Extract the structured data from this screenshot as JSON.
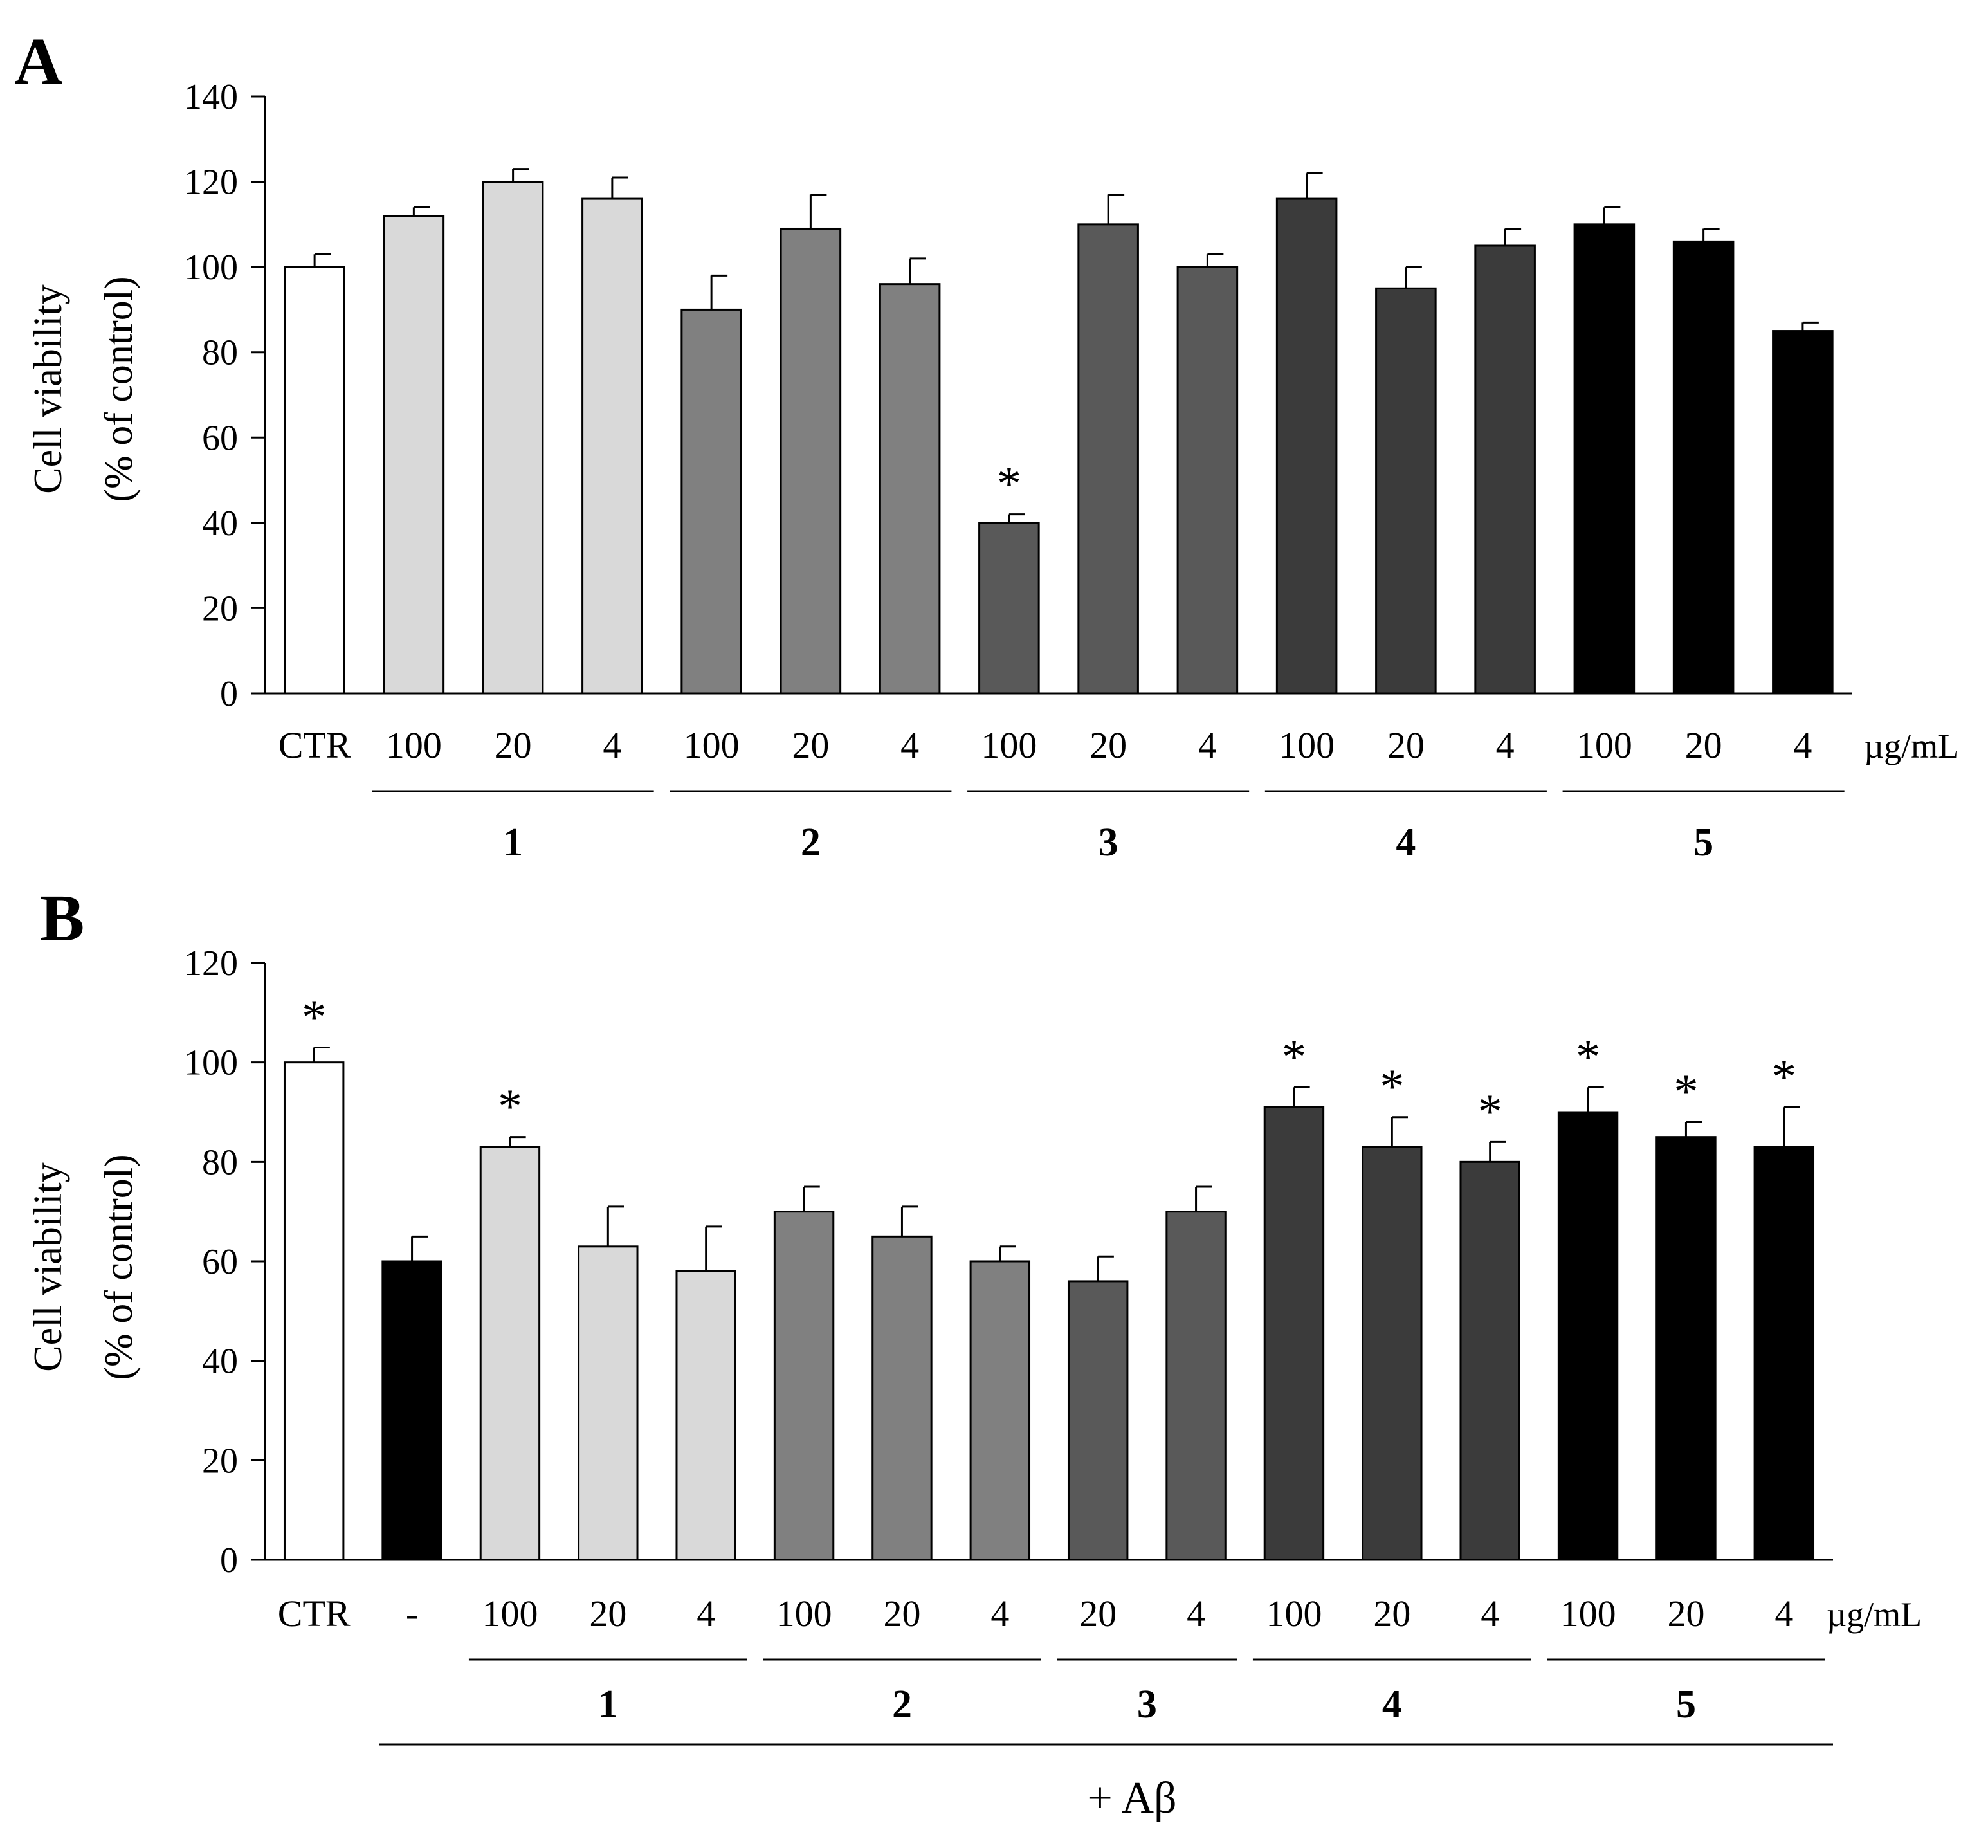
{
  "chart_data": [
    {
      "panel": "A",
      "type": "bar",
      "ylabel": [
        "Cell viability",
        "(% of control)"
      ],
      "ylim": [
        0,
        140
      ],
      "yticks": [
        0,
        20,
        40,
        60,
        80,
        100,
        120,
        140
      ],
      "unit_label": "µg/mL",
      "categories": [
        "CTR",
        "100",
        "20",
        "4",
        "100",
        "20",
        "4",
        "100",
        "20",
        "4",
        "100",
        "20",
        "4",
        "100",
        "20",
        "4"
      ],
      "values": [
        100,
        112,
        120,
        116,
        90,
        109,
        96,
        40,
        110,
        100,
        116,
        95,
        105,
        110,
        106,
        85
      ],
      "errors": [
        3,
        2,
        3,
        5,
        8,
        8,
        6,
        2,
        7,
        3,
        6,
        5,
        4,
        4,
        3,
        2
      ],
      "colors": [
        "#ffffff",
        "#d9d9d9",
        "#d9d9d9",
        "#d9d9d9",
        "#808080",
        "#808080",
        "#808080",
        "#595959",
        "#595959",
        "#595959",
        "#3b3b3b",
        "#3b3b3b",
        "#3b3b3b",
        "#000000",
        "#000000",
        "#000000"
      ],
      "significant": [
        false,
        false,
        false,
        false,
        false,
        false,
        false,
        true,
        false,
        false,
        false,
        false,
        false,
        false,
        false,
        false
      ],
      "significance_mark": "*",
      "groups": [
        {
          "label": "1",
          "start": 1,
          "end": 3
        },
        {
          "label": "2",
          "start": 4,
          "end": 6
        },
        {
          "label": "3",
          "start": 7,
          "end": 9
        },
        {
          "label": "4",
          "start": 10,
          "end": 12
        },
        {
          "label": "5",
          "start": 13,
          "end": 15
        }
      ]
    },
    {
      "panel": "B",
      "type": "bar",
      "ylabel": [
        "Cell viability",
        "(% of control)"
      ],
      "ylim": [
        0,
        120
      ],
      "yticks": [
        0,
        20,
        40,
        60,
        80,
        100,
        120
      ],
      "unit_label": "µg/mL",
      "categories": [
        "CTR",
        "-",
        "100",
        "20",
        "4",
        "100",
        "20",
        "4",
        "20",
        "4",
        "100",
        "20",
        "4",
        "100",
        "20",
        "4"
      ],
      "values": [
        100,
        60,
        83,
        63,
        58,
        70,
        65,
        60,
        56,
        70,
        91,
        83,
        80,
        90,
        85,
        83
      ],
      "errors": [
        3,
        5,
        2,
        8,
        9,
        5,
        6,
        3,
        5,
        5,
        4,
        6,
        4,
        5,
        3,
        8
      ],
      "colors": [
        "#ffffff",
        "#000000",
        "#d9d9d9",
        "#d9d9d9",
        "#d9d9d9",
        "#808080",
        "#808080",
        "#808080",
        "#595959",
        "#595959",
        "#3b3b3b",
        "#3b3b3b",
        "#3b3b3b",
        "#000000",
        "#000000",
        "#000000"
      ],
      "significant": [
        true,
        false,
        true,
        false,
        false,
        false,
        false,
        false,
        false,
        false,
        true,
        true,
        true,
        true,
        true,
        true
      ],
      "significance_mark": "*",
      "groups": [
        {
          "label": "1",
          "start": 2,
          "end": 4
        },
        {
          "label": "2",
          "start": 5,
          "end": 7
        },
        {
          "label": "3",
          "start": 8,
          "end": 9
        },
        {
          "label": "4",
          "start": 10,
          "end": 12
        },
        {
          "label": "5",
          "start": 13,
          "end": 15
        }
      ],
      "treatment_label": "+ Aβ",
      "treatment_span": {
        "start": 1,
        "end": 15
      }
    }
  ]
}
